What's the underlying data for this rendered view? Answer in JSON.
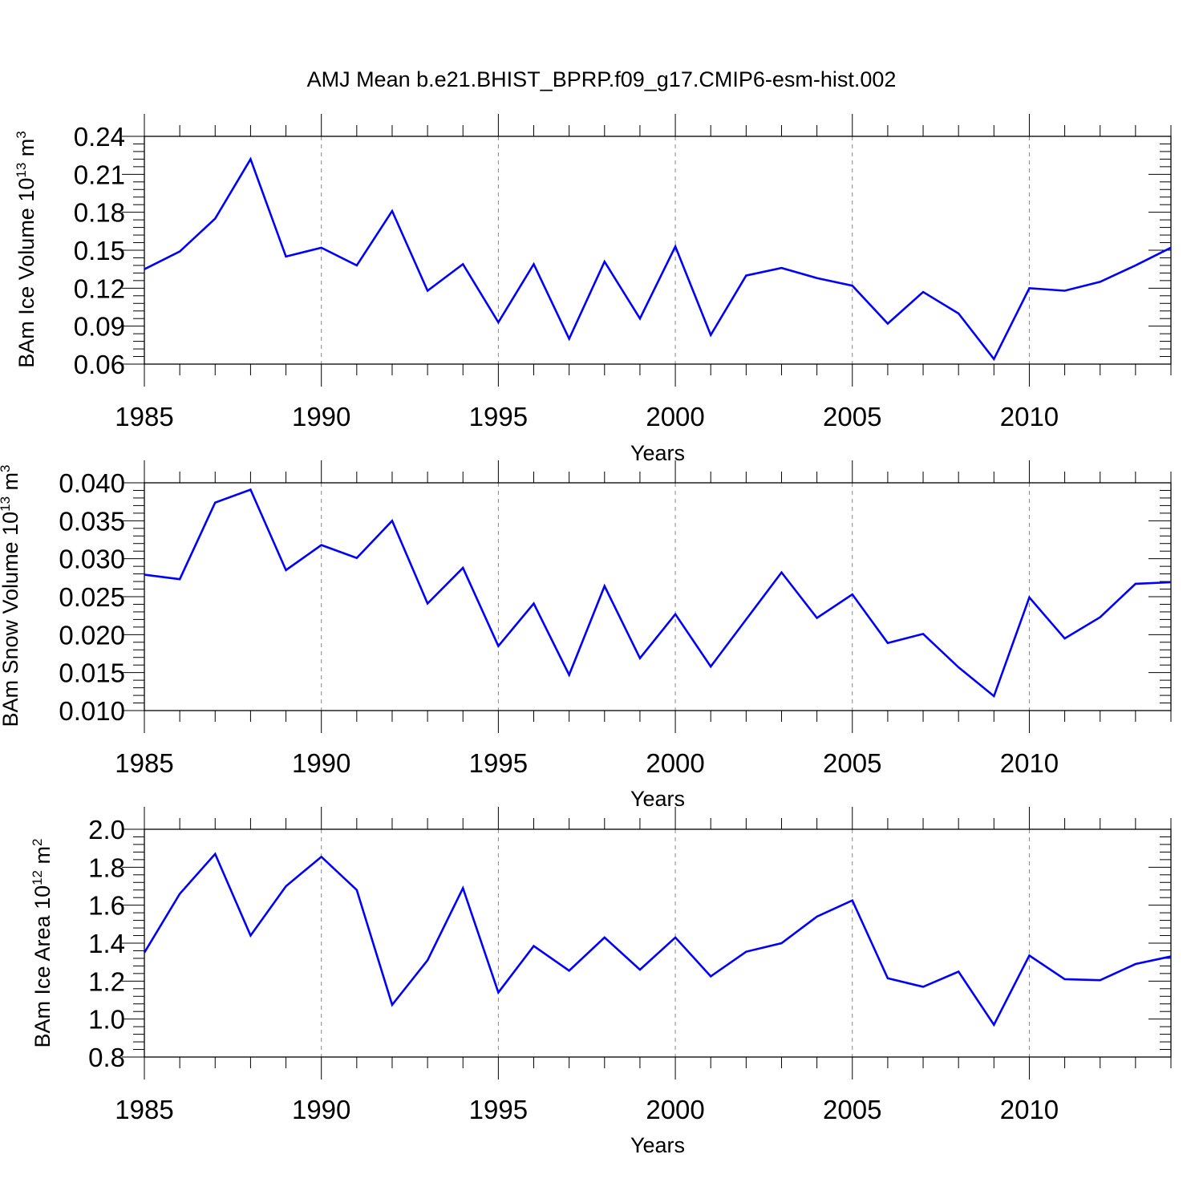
{
  "title": "AMJ Mean b.e21.BHIST_BPRP.f09_g17.CMIP6-esm-hist.002",
  "colors": {
    "line": "#0000ff",
    "axis": "#000000",
    "grid": "#888888"
  },
  "chart_data": [
    {
      "type": "line",
      "ylabel_main": "BAm Ice Volume 10",
      "ylabel_exp": "13",
      "ylabel_unit": "m",
      "ylabel_unit_exp": "3",
      "xlabel": "Years",
      "xlim": [
        1985,
        2014
      ],
      "ylim": [
        0.06,
        0.24
      ],
      "yticks": [
        "0.06",
        "0.09",
        "0.12",
        "0.15",
        "0.18",
        "0.21",
        "0.24"
      ],
      "xticks": [
        "1985",
        "1990",
        "1995",
        "2000",
        "2005",
        "2010"
      ],
      "grid": "vertical dashed at 1990, 1995, 2000, 2005, 2010",
      "x": [
        1985,
        1986,
        1987,
        1988,
        1989,
        1990,
        1991,
        1992,
        1993,
        1994,
        1995,
        1996,
        1997,
        1998,
        1999,
        2000,
        2001,
        2002,
        2003,
        2004,
        2005,
        2006,
        2007,
        2008,
        2009,
        2010,
        2011,
        2012,
        2013,
        2014
      ],
      "series": [
        {
          "values": [
            0.135,
            0.149,
            0.175,
            0.222,
            0.145,
            0.152,
            0.138,
            0.181,
            0.118,
            0.139,
            0.093,
            0.139,
            0.08,
            0.141,
            0.096,
            0.153,
            0.083,
            0.13,
            0.136,
            0.128,
            0.122,
            0.092,
            0.117,
            0.1,
            0.064,
            0.12,
            0.118,
            0.125,
            0.138,
            0.152
          ]
        }
      ]
    },
    {
      "type": "line",
      "ylabel_main": "BAm Snow Volume 10",
      "ylabel_exp": "13",
      "ylabel_unit": "m",
      "ylabel_unit_exp": "3",
      "xlabel": "Years",
      "xlim": [
        1985,
        2014
      ],
      "ylim": [
        0.01,
        0.04
      ],
      "yticks": [
        "0.010",
        "0.015",
        "0.020",
        "0.025",
        "0.030",
        "0.035",
        "0.040"
      ],
      "xticks": [
        "1985",
        "1990",
        "1995",
        "2000",
        "2005",
        "2010"
      ],
      "grid": "vertical dashed at 1990, 1995, 2000, 2005, 2010",
      "x": [
        1985,
        1986,
        1987,
        1988,
        1989,
        1990,
        1991,
        1992,
        1993,
        1994,
        1995,
        1996,
        1997,
        1998,
        1999,
        2000,
        2001,
        2002,
        2003,
        2004,
        2005,
        2006,
        2007,
        2008,
        2009,
        2010,
        2011,
        2012,
        2013,
        2014
      ],
      "series": [
        {
          "values": [
            0.0279,
            0.0273,
            0.0374,
            0.0391,
            0.0285,
            0.0318,
            0.0301,
            0.035,
            0.0241,
            0.0288,
            0.0185,
            0.0241,
            0.0147,
            0.0264,
            0.0169,
            0.0227,
            0.0158,
            0.022,
            0.0282,
            0.0222,
            0.0253,
            0.0189,
            0.0201,
            0.0157,
            0.0119,
            0.0249,
            0.0195,
            0.0223,
            0.0267,
            0.0269
          ]
        }
      ]
    },
    {
      "type": "line",
      "ylabel_main": "BAm Ice Area 10",
      "ylabel_exp": "12",
      "ylabel_unit": "m",
      "ylabel_unit_exp": "2",
      "xlabel": "Years",
      "xlim": [
        1985,
        2014
      ],
      "ylim": [
        0.8,
        2.0
      ],
      "yticks": [
        "0.8",
        "1.0",
        "1.2",
        "1.4",
        "1.6",
        "1.8",
        "2.0"
      ],
      "xticks": [
        "1985",
        "1990",
        "1995",
        "2000",
        "2005",
        "2010"
      ],
      "grid": "vertical dashed at 1990, 1995, 2000, 2005, 2010",
      "x": [
        1985,
        1986,
        1987,
        1988,
        1989,
        1990,
        1991,
        1992,
        1993,
        1994,
        1995,
        1996,
        1997,
        1998,
        1999,
        2000,
        2001,
        2002,
        2003,
        2004,
        2005,
        2006,
        2007,
        2008,
        2009,
        2010,
        2011,
        2012,
        2013,
        2014
      ],
      "series": [
        {
          "values": [
            1.35,
            1.66,
            1.87,
            1.44,
            1.7,
            1.855,
            1.68,
            1.075,
            1.31,
            1.69,
            1.14,
            1.385,
            1.255,
            1.43,
            1.26,
            1.43,
            1.225,
            1.355,
            1.4,
            1.54,
            1.625,
            1.215,
            1.17,
            1.25,
            0.97,
            1.335,
            1.21,
            1.205,
            1.29,
            1.33
          ]
        }
      ]
    }
  ]
}
